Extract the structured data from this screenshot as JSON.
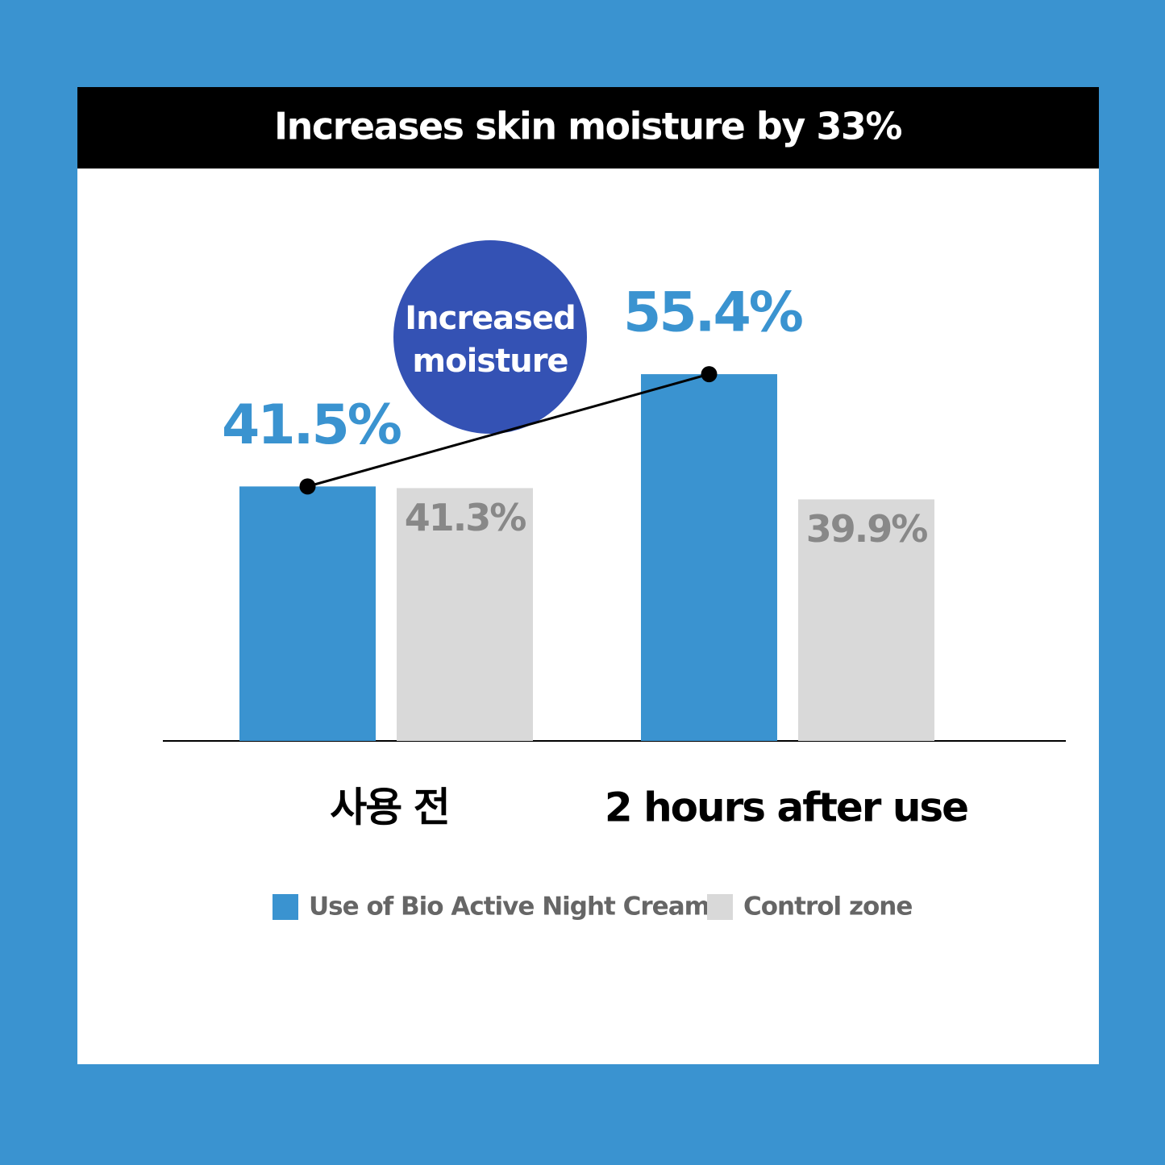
{
  "chart_data": {
    "type": "bar",
    "title": "Increases skin moisture by 33%",
    "categories": [
      "사용 전",
      "2 hours after use"
    ],
    "series": [
      {
        "name": "Use of Bio Active Night Cream",
        "color": "#3a93d0",
        "values": [
          41.5,
          55.4
        ],
        "value_labels": [
          "41.5%",
          "55.4%"
        ]
      },
      {
        "name": "Control zone",
        "color": "#d9d9d9",
        "values": [
          41.3,
          39.9
        ],
        "value_labels": [
          "41.3%",
          "39.9%"
        ]
      }
    ],
    "annotation": [
      "Increased",
      "moisture"
    ],
    "annotation_color": "#3452b4",
    "ylim": [
      10,
      60
    ],
    "connect_series": 0,
    "legend": "bottom"
  }
}
